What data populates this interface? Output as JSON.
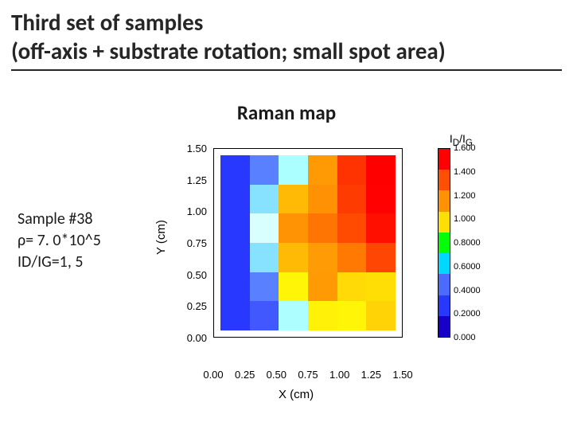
{
  "title": {
    "line1": "Third set of samples",
    "line2": "(off-axis + substrate rotation; small spot area)",
    "fontsize": 29,
    "color": "#262626"
  },
  "subtitle": {
    "text": "Raman map",
    "fontsize": 25
  },
  "sample": {
    "line1": "Sample #38",
    "line2": "ρ= 7. 0*10^5",
    "line3": "ID/IG=1, 5",
    "fontsize": 20
  },
  "chart": {
    "type": "heatmap",
    "xlabel": "X (cm)",
    "ylabel": "Y (cm)",
    "ticks": [
      "0.00",
      "0.25",
      "0.50",
      "0.75",
      "1.00",
      "1.25",
      "1.50"
    ],
    "xlim": [
      0,
      1.5
    ],
    "ylim": [
      0,
      1.5
    ],
    "plot_border_color": "#000000",
    "background_color": "#ffffff",
    "heatgrid": {
      "rows": 6,
      "cols": 6,
      "colors": [
        [
          "#2838ff",
          "#5981ff",
          "#acffff",
          "#ff9a04",
          "#fe3301",
          "#ff0000"
        ],
        [
          "#2838ff",
          "#86e2ff",
          "#ffba05",
          "#ff9204",
          "#fe3b01",
          "#ff0200"
        ],
        [
          "#2838ff",
          "#d8fffd",
          "#ff9304",
          "#ff7503",
          "#ff4a02",
          "#ff0f00"
        ],
        [
          "#2838ff",
          "#86e2ff",
          "#ffba05",
          "#ff9b04",
          "#ff7903",
          "#ff4602"
        ],
        [
          "#2838ff",
          "#5981ff",
          "#fff607",
          "#ff9904",
          "#ffda06",
          "#ffde06"
        ],
        [
          "#2838ff",
          "#4258ff",
          "#acfffe",
          "#fff107",
          "#fff607",
          "#ffd306"
        ]
      ]
    },
    "colorbar": {
      "title": "I_D/I_G",
      "stops": [
        {
          "v": "1.600",
          "c": "#ff0000"
        },
        {
          "v": "1.400",
          "c": "#ff4f02"
        },
        {
          "v": "1.200",
          "c": "#ff9204"
        },
        {
          "v": "1.000",
          "c": "#ffde06"
        },
        {
          "v": "0.8000",
          "c": "#05fe07"
        },
        {
          "v": "0.6000",
          "c": "#00d8ff"
        },
        {
          "v": "0.4000",
          "c": "#4b6bff"
        },
        {
          "v": "0.2000",
          "c": "#2838ff"
        },
        {
          "v": "0.000",
          "c": "#1800c8"
        }
      ]
    }
  }
}
